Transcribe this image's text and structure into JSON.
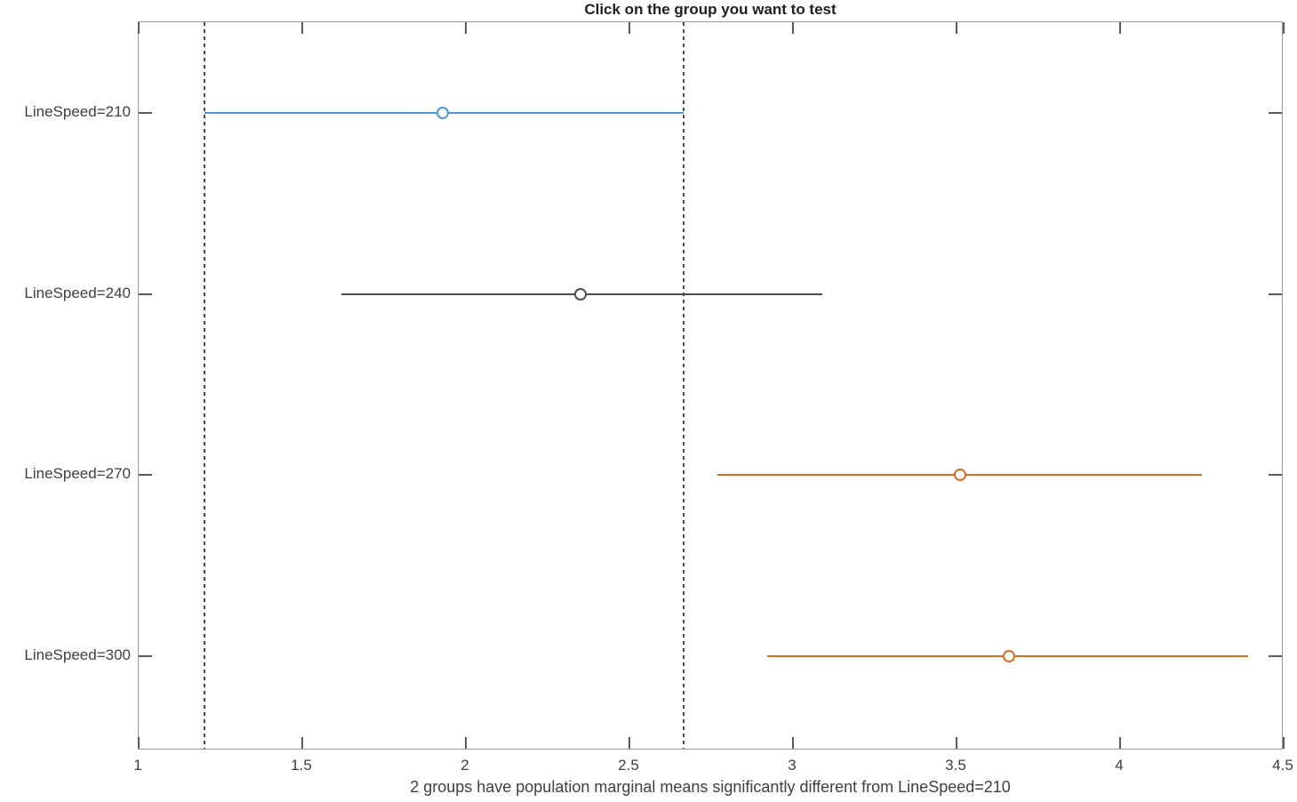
{
  "chart_data": {
    "type": "scatter",
    "subtype": "multiple-comparison-intervals",
    "title": "Click on the group you want to test",
    "xlabel": "2 groups have population marginal means significantly different from LineSpeed=210",
    "xlim": [
      1,
      4.5
    ],
    "xticks": [
      1,
      1.5,
      2,
      2.5,
      3,
      3.5,
      4,
      4.5
    ],
    "xtick_labels": [
      "1",
      "1.5",
      "2",
      "2.5",
      "3",
      "3.5",
      "4",
      "4.5"
    ],
    "ylim": [
      0.48,
      4.5
    ],
    "grid": false,
    "legend": "none",
    "reference_lines_x": [
      1.2,
      2.665
    ],
    "groups": [
      {
        "label": "LineSpeed=210",
        "y": 4,
        "mean": 1.93,
        "ci_low": 1.2,
        "ci_high": 2.665,
        "color": "#4e96d9",
        "selected": true
      },
      {
        "label": "LineSpeed=240",
        "y": 3,
        "mean": 2.35,
        "ci_low": 1.62,
        "ci_high": 3.09,
        "color": "#4d4d4d",
        "selected": false
      },
      {
        "label": "LineSpeed=270",
        "y": 2,
        "mean": 3.51,
        "ci_low": 2.77,
        "ci_high": 4.25,
        "color": "#de6a1f",
        "selected": false
      },
      {
        "label": "LineSpeed=300",
        "y": 1,
        "mean": 3.66,
        "ci_low": 2.92,
        "ci_high": 4.39,
        "color": "#de6a1f",
        "selected": false
      }
    ],
    "colors": {
      "selected_blue": "#4e96d9",
      "not_significant_gray": "#4d4d4d",
      "significant_orange": "#de6a1f",
      "axis_border": "#9c9c9c",
      "tick": "#5a5a5a",
      "text": "#3f3f3f",
      "dashed_line": "#4a4a4a"
    }
  }
}
